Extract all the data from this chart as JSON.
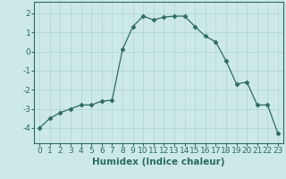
{
  "x": [
    0,
    1,
    2,
    3,
    4,
    5,
    6,
    7,
    8,
    9,
    10,
    11,
    12,
    13,
    14,
    15,
    16,
    17,
    18,
    19,
    20,
    21,
    22,
    23
  ],
  "y": [
    -4.0,
    -3.5,
    -3.2,
    -3.0,
    -2.8,
    -2.8,
    -2.6,
    -2.55,
    0.1,
    1.3,
    1.85,
    1.65,
    1.8,
    1.85,
    1.85,
    1.3,
    0.8,
    0.5,
    -0.5,
    -1.7,
    -1.6,
    -2.8,
    -2.8,
    -4.3
  ],
  "title": "",
  "xlabel": "Humidex (Indice chaleur)",
  "ylabel": "",
  "line_color": "#2d6b5e",
  "marker": "D",
  "marker_size": 2.5,
  "bg_color": "#cce9e7",
  "grid_color": "#aed4d0",
  "xlim": [
    -0.5,
    23.5
  ],
  "ylim": [
    -4.8,
    2.6
  ],
  "xticks": [
    0,
    1,
    2,
    3,
    4,
    5,
    6,
    7,
    8,
    9,
    10,
    11,
    12,
    13,
    14,
    15,
    16,
    17,
    18,
    19,
    20,
    21,
    22,
    23
  ],
  "yticks": [
    -4,
    -3,
    -2,
    -1,
    0,
    1,
    2
  ],
  "tick_fontsize": 6.5,
  "xlabel_fontsize": 7.5
}
